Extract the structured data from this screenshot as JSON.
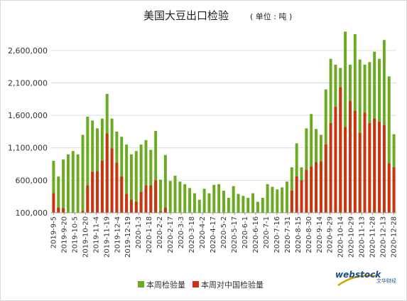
{
  "chart_data": {
    "type": "bar",
    "title": "美国大豆出口检验",
    "title_unit": "( 单位 : 吨 )",
    "ylim": [
      100000,
      2850000
    ],
    "yticks": [
      100000,
      600000,
      1100000,
      1600000,
      2100000,
      2600000
    ],
    "ytick_labels": [
      "100,000",
      "600,000",
      "1,100,000",
      "1,600,000",
      "2,100,000",
      "2,600,000"
    ],
    "xtick_labels": [
      "2019-9-5",
      "2019-9-20",
      "2019-10-5",
      "2019-10-20",
      "2019-11-4",
      "2019-11-19",
      "2019-12-4",
      "2019-12-19",
      "2020-1-3",
      "2020-1-18",
      "2020-2-2",
      "2020-2-17",
      "2020-3-3",
      "2020-3-18",
      "2020-4-2",
      "2020-4-17",
      "2020-5-2",
      "2020-5-17",
      "2020-6-1",
      "2020-6-16",
      "2020-7-1",
      "2020-7-16",
      "2020-7-31",
      "2020-8-15",
      "2020-8-30",
      "2020-9-14",
      "2020-9-29",
      "2020-10-14",
      "2020-10-29",
      "2020-11-13",
      "2020-11-28",
      "2020-12-13",
      "2020-12-28"
    ],
    "grid": true,
    "legend_position": "bottom",
    "series": [
      {
        "name": "本周检验量",
        "color": "#6aab21",
        "values": [
          900000,
          660000,
          920000,
          1000000,
          1050000,
          1000000,
          1300000,
          1580000,
          1520000,
          1400000,
          1550000,
          1930000,
          1550000,
          1350000,
          1270000,
          1150000,
          1000000,
          1050000,
          1150000,
          1220000,
          1070000,
          1360000,
          610000,
          990000,
          590000,
          670000,
          580000,
          540000,
          480000,
          400000,
          300000,
          470000,
          400000,
          530000,
          540000,
          440000,
          330000,
          510000,
          390000,
          360000,
          330000,
          400000,
          270000,
          330000,
          540000,
          500000,
          460000,
          490000,
          580000,
          800000,
          1170000,
          800000,
          1400000,
          1620000,
          1390000,
          1300000,
          2000000,
          2470000,
          2380000,
          2330000,
          2890000,
          2380000,
          2850000,
          2460000,
          2380000,
          2420000,
          2580000,
          2470000,
          2760000,
          2200000,
          1310000
        ]
      },
      {
        "name": "本周对中国检验量",
        "color": "#cc3311",
        "values": [
          400000,
          180000,
          170000,
          100000,
          100000,
          100000,
          130000,
          520000,
          730000,
          740000,
          900000,
          1320000,
          1090000,
          870000,
          660000,
          390000,
          300000,
          270000,
          420000,
          520000,
          520000,
          600000,
          120000,
          180000,
          100000,
          100000,
          100000,
          100000,
          100000,
          100000,
          100000,
          100000,
          100000,
          100000,
          100000,
          100000,
          100000,
          100000,
          100000,
          100000,
          100000,
          100000,
          100000,
          100000,
          100000,
          100000,
          100000,
          100000,
          100000,
          440000,
          660000,
          600000,
          760000,
          810000,
          880000,
          890000,
          1150000,
          1480000,
          1730000,
          2030000,
          1420000,
          1820000,
          1670000,
          1330000,
          1640000,
          1480000,
          1550000,
          1500000,
          1450000,
          860000,
          800000
        ]
      }
    ]
  },
  "watermark": {
    "brand": "web",
    "brand2": "stock",
    "cn": "文华财经"
  }
}
